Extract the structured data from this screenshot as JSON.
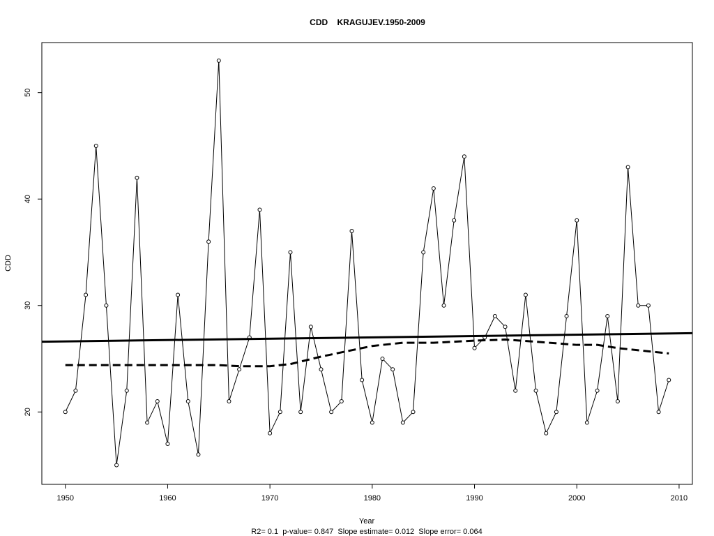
{
  "chart_data": {
    "type": "line",
    "title": "CDD    KRAGUJEV.1950-2009",
    "xlabel": "Year",
    "ylabel": "CDD",
    "footnote": "R2= 0.1  p-value= 0.847  Slope estimate= 0.012  Slope error= 0.064",
    "xlim": [
      1947.7,
      2011.3
    ],
    "ylim": [
      13.2,
      54.7
    ],
    "xticks": [
      1950,
      1960,
      1970,
      1980,
      1990,
      2000,
      2010
    ],
    "yticks": [
      20,
      30,
      40,
      50
    ],
    "grid": false,
    "legend": "none",
    "x": [
      1950,
      1951,
      1952,
      1953,
      1954,
      1955,
      1956,
      1957,
      1958,
      1959,
      1960,
      1961,
      1962,
      1963,
      1964,
      1965,
      1966,
      1967,
      1968,
      1969,
      1970,
      1971,
      1972,
      1973,
      1974,
      1975,
      1976,
      1977,
      1978,
      1979,
      1980,
      1981,
      1982,
      1983,
      1984,
      1985,
      1986,
      1987,
      1988,
      1989,
      1990,
      1991,
      1992,
      1993,
      1994,
      1995,
      1996,
      1997,
      1998,
      1999,
      2000,
      2001,
      2002,
      2003,
      2004,
      2005,
      2006,
      2007,
      2008,
      2009
    ],
    "series": [
      {
        "style": "solid-thin-with-open-circles",
        "values": [
          20,
          22,
          31,
          45,
          30,
          15,
          22,
          42,
          19,
          21,
          17,
          31,
          21,
          16,
          36,
          53,
          21,
          24,
          27,
          39,
          18,
          20,
          35,
          20,
          28,
          24,
          20,
          21,
          37,
          23,
          19,
          25,
          24,
          19,
          20,
          35,
          41,
          30,
          38,
          44,
          26,
          27,
          29,
          28,
          22,
          31,
          22,
          18,
          20,
          29,
          38,
          19,
          22,
          29,
          21,
          43,
          30,
          30,
          20,
          23
        ]
      },
      {
        "style": "solid-thick-trend",
        "x": [
          1947.7,
          2011.3
        ],
        "values": [
          26.6,
          27.4
        ]
      },
      {
        "style": "dashed-thick-smooth",
        "x": [
          1950,
          1955,
          1960,
          1965,
          1967,
          1970,
          1972,
          1975,
          1978,
          1980,
          1983,
          1986,
          1990,
          1993,
          1996,
          2000,
          2002,
          2004,
          2007,
          2009
        ],
        "values": [
          24.4,
          24.4,
          24.4,
          24.4,
          24.3,
          24.3,
          24.5,
          25.2,
          25.8,
          26.2,
          26.5,
          26.5,
          26.7,
          26.8,
          26.6,
          26.3,
          26.3,
          26.0,
          25.7,
          25.5
        ]
      }
    ]
  }
}
